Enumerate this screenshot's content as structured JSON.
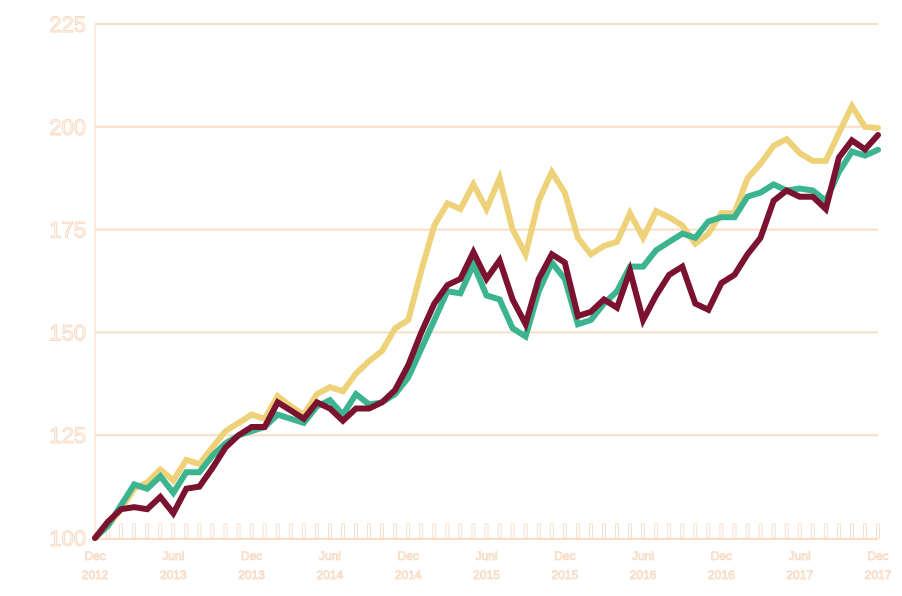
{
  "chart_data": {
    "type": "line",
    "title": "",
    "xlabel": "",
    "ylabel": "",
    "ylim": [
      100,
      225
    ],
    "yticks": [
      "100",
      "125",
      "150",
      "175",
      "200",
      "225"
    ],
    "grid": true,
    "x_start": "Dec 2012",
    "x_end": "Dec 2017",
    "x_frequency": "monthly",
    "xtick_labels": [
      [
        "Dec",
        "2012"
      ],
      [
        "Juni",
        "2013"
      ],
      [
        "Dec",
        "2013"
      ],
      [
        "Juni",
        "2014"
      ],
      [
        "Dec",
        "2014"
      ],
      [
        "Juni",
        "2015"
      ],
      [
        "Dec",
        "2015"
      ],
      [
        "Juni",
        "2016"
      ],
      [
        "Dec",
        "2016"
      ],
      [
        "Juni",
        "2017"
      ],
      [
        "Dec",
        "2017"
      ]
    ],
    "series": [
      {
        "color": "#eed27a",
        "values": [
          100,
          103,
          107,
          112,
          113.5,
          116.6,
          114,
          119,
          118,
          122,
          126,
          128,
          130,
          129,
          134.5,
          132,
          130,
          135,
          136.7,
          135.7,
          140,
          143,
          145.5,
          151,
          153,
          165,
          176,
          181.4,
          180,
          186,
          180,
          187.5,
          175,
          169,
          182,
          189,
          184,
          173,
          169,
          171,
          172,
          179,
          173,
          179.5,
          178,
          176,
          171.6,
          174,
          179,
          179,
          187.5,
          191,
          195.4,
          197,
          193.6,
          191.7,
          191.7,
          198.5,
          205,
          200,
          199.7
        ]
      },
      {
        "color": "#3bb48f",
        "values": [
          100,
          103,
          108,
          113,
          112,
          115,
          111,
          116,
          116,
          120,
          123,
          125,
          126,
          127,
          130,
          129,
          128,
          132,
          133.5,
          130,
          135,
          132.5,
          133,
          135,
          139,
          146,
          153,
          160,
          159.5,
          166.5,
          159,
          158,
          151,
          149,
          160,
          167,
          163,
          152,
          153,
          157,
          160,
          166,
          166,
          170,
          172,
          174,
          173,
          177,
          178,
          178,
          183,
          184,
          186,
          184.5,
          185,
          184.5,
          182,
          189,
          194,
          193,
          194.4
        ]
      },
      {
        "color": "#7a1230",
        "values": [
          100,
          104,
          107,
          107.5,
          107,
          110,
          106,
          112,
          112.5,
          117,
          122,
          125,
          127,
          127,
          133,
          131,
          129,
          133,
          131.5,
          128.5,
          131.5,
          131.5,
          133,
          136,
          142,
          150,
          157,
          161.5,
          163,
          169.5,
          163,
          167.5,
          158,
          152,
          163,
          169,
          167,
          154,
          155,
          158,
          156,
          165,
          153,
          159,
          164,
          166,
          157,
          155.5,
          162,
          164,
          169,
          173,
          182,
          184.5,
          183,
          183,
          180,
          192.5,
          196.7,
          194.5,
          198
        ]
      }
    ]
  }
}
